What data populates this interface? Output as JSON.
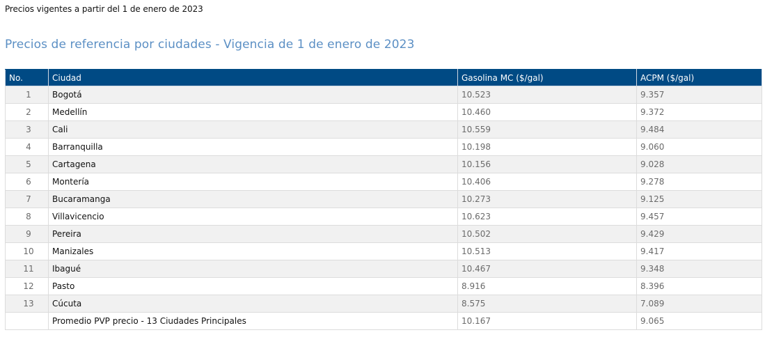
{
  "intro_text": "Precios vigentes a partir del 1 de enero de 2023",
  "heading": "Precios de referencia por ciudades - Vigencia de 1 de enero de 2023",
  "table": {
    "headers": [
      "No.",
      "Ciudad",
      "Gasolina MC ($/gal)",
      "ACPM ($/gal)"
    ],
    "rows": [
      {
        "no": "1",
        "city": "Bogotá",
        "gasolina": "10.523",
        "acpm": "9.357"
      },
      {
        "no": "2",
        "city": "Medellín",
        "gasolina": "10.460",
        "acpm": "9.372"
      },
      {
        "no": "3",
        "city": "Cali",
        "gasolina": "10.559",
        "acpm": "9.484"
      },
      {
        "no": "4",
        "city": "Barranquilla",
        "gasolina": "10.198",
        "acpm": "9.060"
      },
      {
        "no": "5",
        "city": "Cartagena",
        "gasolina": "10.156",
        "acpm": "9.028"
      },
      {
        "no": "6",
        "city": "Montería",
        "gasolina": "10.406",
        "acpm": "9.278"
      },
      {
        "no": "7",
        "city": "Bucaramanga",
        "gasolina": "10.273",
        "acpm": "9.125"
      },
      {
        "no": "8",
        "city": "Villavicencio",
        "gasolina": "10.623",
        "acpm": "9.457"
      },
      {
        "no": "9",
        "city": "Pereira",
        "gasolina": "10.502",
        "acpm": "9.429"
      },
      {
        "no": "10",
        "city": "Manizales",
        "gasolina": "10.513",
        "acpm": "9.417"
      },
      {
        "no": "11",
        "city": "Ibagué",
        "gasolina": "10.467",
        "acpm": "9.348"
      },
      {
        "no": "12",
        "city": "Pasto",
        "gasolina": "8.916",
        "acpm": "8.396"
      },
      {
        "no": "13",
        "city": "Cúcuta",
        "gasolina": "8.575",
        "acpm": "7.089"
      }
    ],
    "summary": {
      "no": "",
      "city": "Promedio PVP precio - 13 Ciudades Principales",
      "gasolina": "10.167",
      "acpm": "9.065"
    }
  }
}
